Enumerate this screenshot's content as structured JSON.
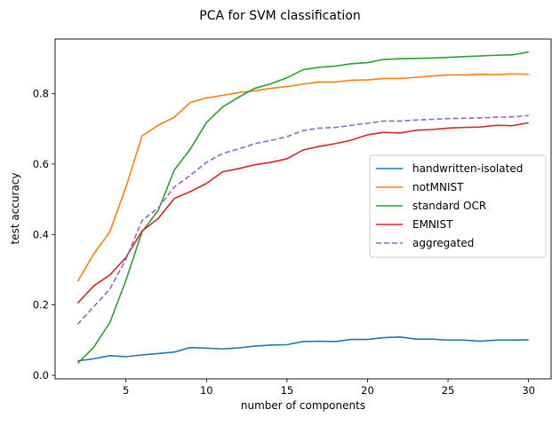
{
  "chart_data": {
    "type": "line",
    "title": "PCA for SVM classification",
    "xlabel": "number of components",
    "ylabel": "test accuracy",
    "xlim": [
      0.6,
      31.4
    ],
    "ylim": [
      -0.01,
      0.955
    ],
    "xticks": [
      5,
      10,
      15,
      20,
      25,
      30
    ],
    "yticks": [
      0.0,
      0.2,
      0.4,
      0.6,
      0.8
    ],
    "x": [
      2,
      3,
      4,
      5,
      6,
      7,
      8,
      9,
      10,
      11,
      12,
      13,
      14,
      15,
      16,
      17,
      18,
      19,
      20,
      21,
      22,
      23,
      24,
      25,
      26,
      27,
      28,
      29,
      30
    ],
    "series": [
      {
        "name": "handwritten-isolated",
        "color": "#1f77b4",
        "dash": "solid",
        "values": [
          0.041,
          0.047,
          0.056,
          0.053,
          0.058,
          0.062,
          0.066,
          0.079,
          0.077,
          0.075,
          0.078,
          0.083,
          0.086,
          0.087,
          0.096,
          0.097,
          0.096,
          0.102,
          0.102,
          0.107,
          0.109,
          0.103,
          0.103,
          0.1,
          0.1,
          0.097,
          0.1,
          0.1,
          0.101
        ]
      },
      {
        "name": "notMNIST",
        "color": "#ff7f0e",
        "dash": "solid",
        "values": [
          0.267,
          0.345,
          0.408,
          0.535,
          0.68,
          0.71,
          0.733,
          0.775,
          0.788,
          0.795,
          0.803,
          0.808,
          0.815,
          0.82,
          0.827,
          0.833,
          0.833,
          0.838,
          0.839,
          0.843,
          0.843,
          0.846,
          0.85,
          0.853,
          0.853,
          0.855,
          0.854,
          0.856,
          0.855
        ]
      },
      {
        "name": "standard OCR",
        "color": "#2ca02c",
        "dash": "solid",
        "values": [
          0.034,
          0.08,
          0.15,
          0.27,
          0.408,
          0.468,
          0.583,
          0.643,
          0.718,
          0.762,
          0.79,
          0.815,
          0.828,
          0.845,
          0.868,
          0.875,
          0.878,
          0.885,
          0.888,
          0.897,
          0.899,
          0.9,
          0.901,
          0.903,
          0.905,
          0.907,
          0.909,
          0.91,
          0.918
        ]
      },
      {
        "name": "EMNIST",
        "color": "#d62728",
        "dash": "solid",
        "values": [
          0.205,
          0.254,
          0.285,
          0.335,
          0.41,
          0.445,
          0.502,
          0.522,
          0.545,
          0.578,
          0.587,
          0.598,
          0.605,
          0.615,
          0.64,
          0.65,
          0.658,
          0.668,
          0.683,
          0.69,
          0.688,
          0.696,
          0.698,
          0.702,
          0.704,
          0.705,
          0.71,
          0.709,
          0.717
        ]
      },
      {
        "name": "aggregated",
        "color": "#9467bd",
        "dash": "dashed",
        "values": [
          0.145,
          0.195,
          0.245,
          0.33,
          0.44,
          0.475,
          0.535,
          0.568,
          0.605,
          0.63,
          0.643,
          0.658,
          0.667,
          0.678,
          0.695,
          0.702,
          0.704,
          0.71,
          0.716,
          0.722,
          0.722,
          0.725,
          0.727,
          0.729,
          0.73,
          0.731,
          0.733,
          0.734,
          0.738
        ]
      }
    ],
    "legend_position": "center-right",
    "grid": false
  }
}
